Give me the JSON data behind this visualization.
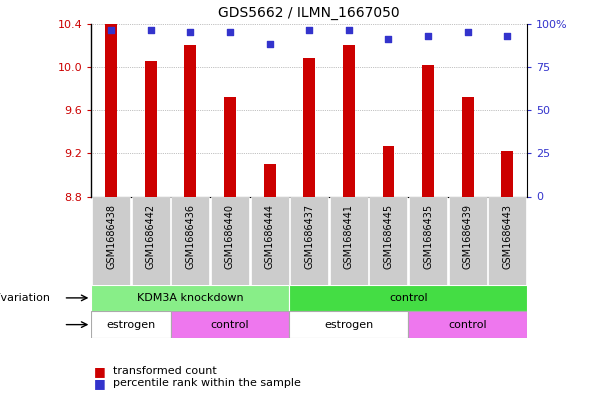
{
  "title": "GDS5662 / ILMN_1667050",
  "samples": [
    "GSM1686438",
    "GSM1686442",
    "GSM1686436",
    "GSM1686440",
    "GSM1686444",
    "GSM1686437",
    "GSM1686441",
    "GSM1686445",
    "GSM1686435",
    "GSM1686439",
    "GSM1686443"
  ],
  "transformed_counts": [
    10.4,
    10.05,
    10.2,
    9.72,
    9.1,
    10.08,
    10.2,
    9.27,
    10.02,
    9.72,
    9.22
  ],
  "percentile_ranks": [
    96,
    96,
    95,
    95,
    88,
    96,
    96,
    91,
    93,
    95,
    93
  ],
  "ylim_left": [
    8.8,
    10.4
  ],
  "ylim_right": [
    0,
    100
  ],
  "yticks_left": [
    8.8,
    9.2,
    9.6,
    10.0,
    10.4
  ],
  "yticks_right": [
    0,
    25,
    50,
    75,
    100
  ],
  "bar_color": "#cc0000",
  "dot_color": "#3333cc",
  "background_color": "#ffffff",
  "grid_color": "#888888",
  "genotype_groups": [
    {
      "label": "KDM3A knockdown",
      "start": 0,
      "end": 5,
      "color": "#88ee88"
    },
    {
      "label": "control",
      "start": 5,
      "end": 11,
      "color": "#44dd44"
    }
  ],
  "agent_groups": [
    {
      "label": "estrogen",
      "start": 0,
      "end": 2,
      "color": "#ffffff"
    },
    {
      "label": "control",
      "start": 2,
      "end": 5,
      "color": "#ee77ee"
    },
    {
      "label": "estrogen",
      "start": 5,
      "end": 8,
      "color": "#ffffff"
    },
    {
      "label": "control",
      "start": 8,
      "end": 11,
      "color": "#ee77ee"
    }
  ],
  "xticklabel_bg": "#cccccc",
  "legend_items": [
    {
      "label": "transformed count",
      "color": "#cc0000"
    },
    {
      "label": "percentile rank within the sample",
      "color": "#3333cc"
    }
  ]
}
